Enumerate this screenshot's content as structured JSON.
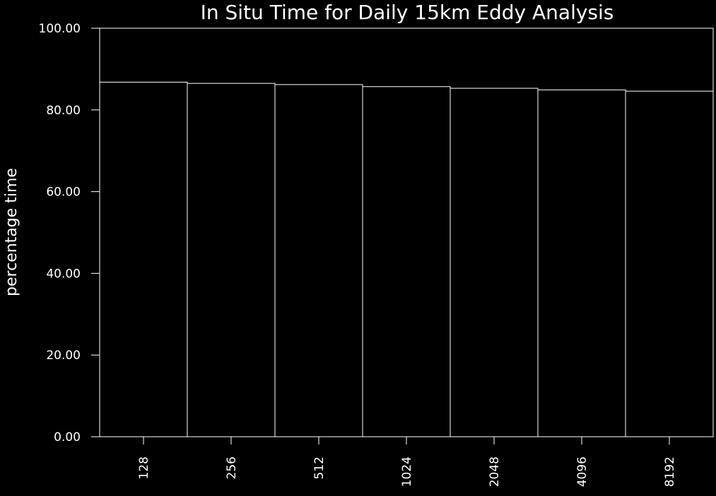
{
  "chart_data": {
    "type": "bar",
    "title": "In Situ Time for Daily 15km Eddy Analysis",
    "xlabel": "",
    "ylabel": "percentage time",
    "categories": [
      "128",
      "256",
      "512",
      "1024",
      "2048",
      "4096",
      "8192"
    ],
    "values": [
      86.8,
      86.5,
      86.2,
      85.7,
      85.3,
      84.9,
      84.6
    ],
    "ylim": [
      0,
      100
    ],
    "yticks": [
      "0.00",
      "20.00",
      "40.00",
      "60.00",
      "80.00",
      "100.00"
    ],
    "grid": false,
    "colors": {
      "background": "#000000",
      "foreground": "#ffffff"
    }
  }
}
